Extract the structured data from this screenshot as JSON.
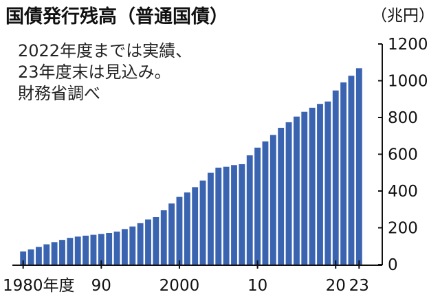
{
  "chart_data": {
    "type": "bar",
    "title": "国債発行残高（普通国債）",
    "subtitle_lines": [
      "2022年度までは実績、",
      "23年度末は見込み。",
      "財務省調べ"
    ],
    "unit": "（兆円）",
    "x": [
      1980,
      1981,
      1982,
      1983,
      1984,
      1985,
      1986,
      1987,
      1988,
      1989,
      1990,
      1991,
      1992,
      1993,
      1994,
      1995,
      1996,
      1997,
      1998,
      1999,
      2000,
      2001,
      2002,
      2003,
      2004,
      2005,
      2006,
      2007,
      2008,
      2009,
      2010,
      2011,
      2012,
      2013,
      2014,
      2015,
      2016,
      2017,
      2018,
      2019,
      2020,
      2021,
      2022,
      2023
    ],
    "values": [
      71,
      82,
      96,
      110,
      122,
      134,
      145,
      152,
      157,
      162,
      166,
      172,
      179,
      193,
      207,
      225,
      245,
      258,
      295,
      332,
      368,
      392,
      421,
      457,
      499,
      527,
      532,
      541,
      546,
      594,
      636,
      670,
      705,
      744,
      774,
      805,
      831,
      853,
      874,
      887,
      947,
      991,
      1027,
      1068
    ],
    "x_tick_labels": [
      {
        "x": 1980,
        "label": "1980年度"
      },
      {
        "x": 1990,
        "label": "90"
      },
      {
        "x": 2000,
        "label": "2000"
      },
      {
        "x": 2010,
        "label": "10"
      },
      {
        "x": 2020,
        "label": "20"
      },
      {
        "x": 2023,
        "label": "23"
      }
    ],
    "y_ticks": [
      0,
      200,
      400,
      600,
      800,
      1000,
      1200
    ],
    "ylim": [
      0,
      1200
    ],
    "bar_color": "#3a63b0",
    "grid": false
  }
}
